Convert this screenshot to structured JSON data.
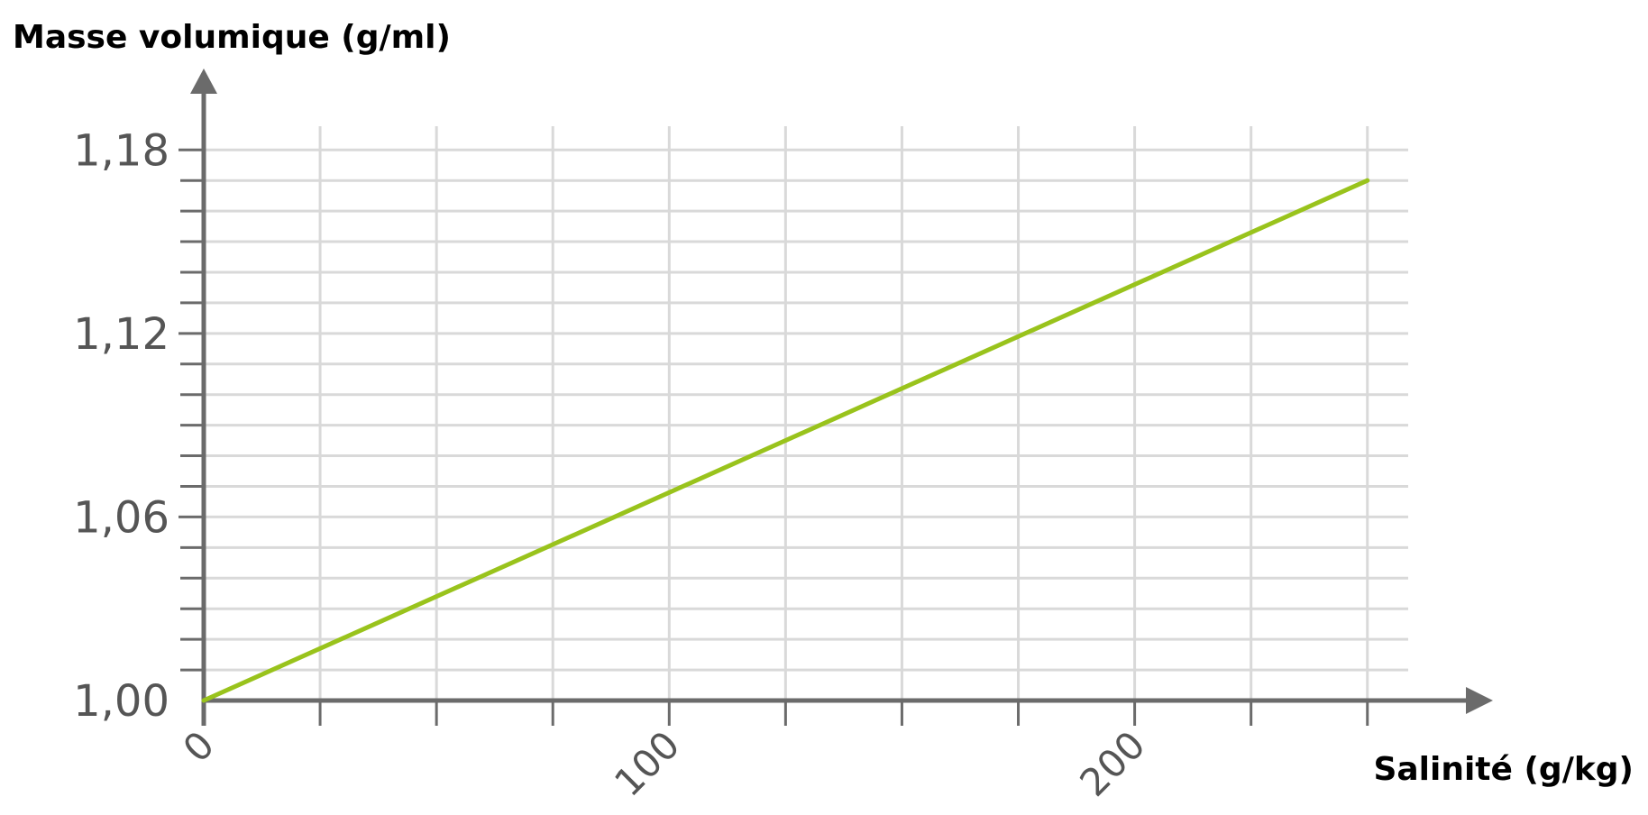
{
  "chart_data": {
    "type": "line",
    "xlabel": "Salinité (g/kg)",
    "ylabel": "Masse volumique (g/ml)",
    "xlim": [
      0,
      260
    ],
    "ylim": [
      1.0,
      1.2
    ],
    "x_ticks": [
      0,
      100,
      200
    ],
    "x_tick_labels": [
      "0",
      "100",
      "200"
    ],
    "x_minor_step": 25,
    "y_ticks": [
      1.0,
      1.06,
      1.12,
      1.18
    ],
    "y_tick_labels": [
      "1,00",
      "1,06",
      "1,12",
      "1,18"
    ],
    "y_minor_step": 0.01,
    "grid": true,
    "series": [
      {
        "x": [
          0,
          250
        ],
        "y": [
          1.0,
          1.17
        ]
      }
    ],
    "colors": {
      "line": "#99c31c",
      "axis": "#6b6b6b",
      "grid": "#d9d9d9",
      "tick_text": "#555555"
    }
  }
}
